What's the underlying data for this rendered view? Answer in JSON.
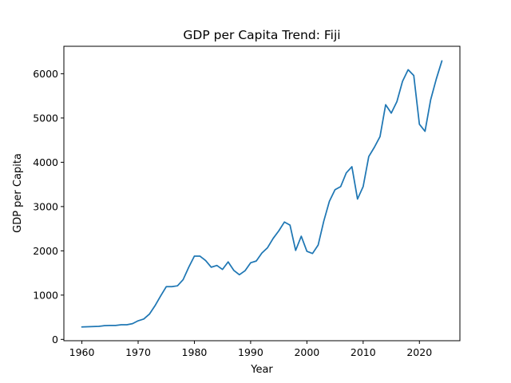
{
  "chart_data": {
    "type": "line",
    "title": "GDP per Capita Trend: Fiji",
    "xlabel": "Year",
    "ylabel": "GDP per Capita",
    "xlim": [
      1956.8,
      2027.2
    ],
    "ylim": [
      -30,
      6620
    ],
    "x_ticks": [
      1960,
      1970,
      1980,
      1990,
      2000,
      2010,
      2020
    ],
    "y_ticks": [
      0,
      1000,
      2000,
      3000,
      4000,
      5000,
      6000
    ],
    "grid": false,
    "legend": "none",
    "series": [
      {
        "color": "#1f77b4",
        "x": [
          1960,
          1961,
          1962,
          1963,
          1964,
          1965,
          1966,
          1967,
          1968,
          1969,
          1970,
          1971,
          1972,
          1973,
          1974,
          1975,
          1976,
          1977,
          1978,
          1979,
          1980,
          1981,
          1982,
          1983,
          1984,
          1985,
          1986,
          1987,
          1988,
          1989,
          1990,
          1991,
          1992,
          1993,
          1994,
          1995,
          1996,
          1997,
          1998,
          1999,
          2000,
          2001,
          2002,
          2003,
          2004,
          2005,
          2006,
          2007,
          2008,
          2009,
          2010,
          2011,
          2012,
          2013,
          2014,
          2015,
          2016,
          2017,
          2018,
          2019,
          2020,
          2021,
          2022,
          2023,
          2024
        ],
        "y": [
          280,
          285,
          290,
          295,
          310,
          315,
          315,
          330,
          330,
          355,
          420,
          460,
          570,
          760,
          980,
          1190,
          1190,
          1210,
          1350,
          1630,
          1880,
          1880,
          1780,
          1630,
          1670,
          1580,
          1750,
          1560,
          1460,
          1550,
          1730,
          1770,
          1950,
          2070,
          2280,
          2450,
          2650,
          2580,
          2010,
          2330,
          1990,
          1940,
          2130,
          2670,
          3120,
          3380,
          3450,
          3760,
          3900,
          3170,
          3450,
          4130,
          4340,
          4580,
          5300,
          5110,
          5370,
          5830,
          6090,
          5960,
          4860,
          4700,
          5410,
          5880,
          6290
        ]
      }
    ]
  }
}
